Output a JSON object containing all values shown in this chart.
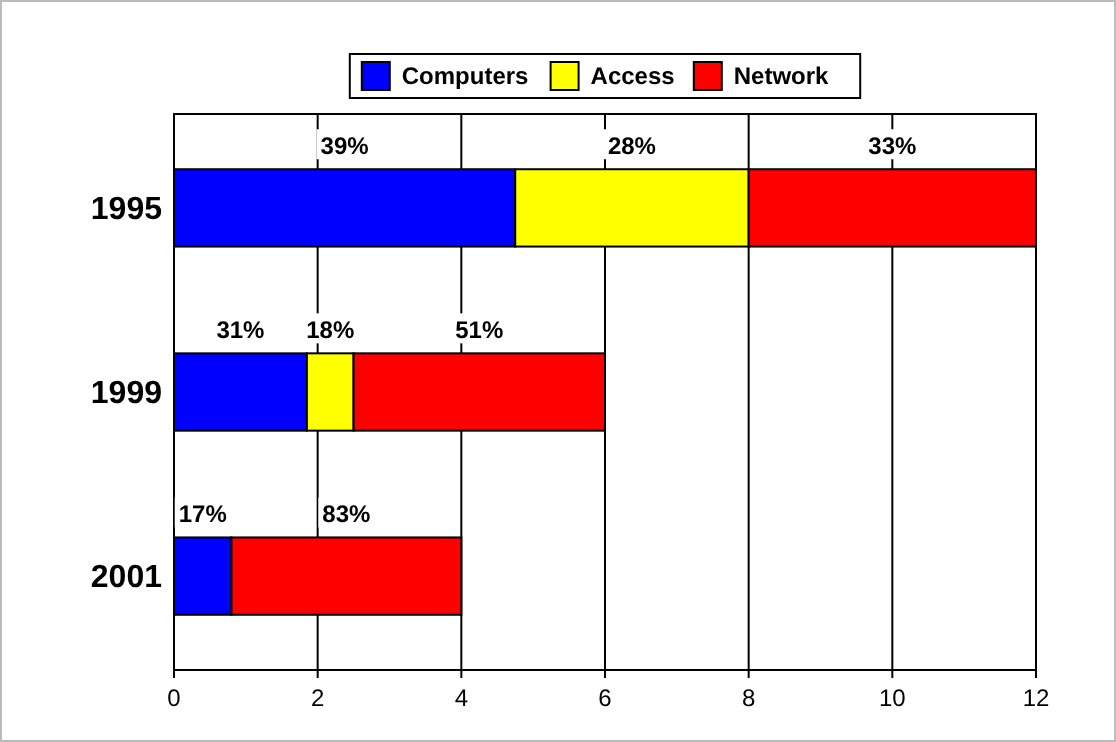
{
  "chart_data": {
    "type": "bar",
    "orientation": "horizontal",
    "stacked": true,
    "categories": [
      "1995",
      "1999",
      "2001"
    ],
    "series": [
      {
        "name": "Computers",
        "color": "#0000ff",
        "values": [
          4.75,
          1.85,
          0.8
        ]
      },
      {
        "name": "Access",
        "color": "#ffff00",
        "values": [
          3.25,
          0.65,
          null
        ]
      },
      {
        "name": "Network",
        "color": "#ff0000",
        "values": [
          4,
          3.5,
          3.2
        ]
      }
    ],
    "annotations": [
      "39%",
      "28%",
      "33%",
      "31%",
      "18%",
      "51%",
      "17%",
      "83%"
    ],
    "xlim": [
      0,
      12
    ],
    "xticks": [
      0,
      2,
      4,
      6,
      8,
      10,
      12
    ],
    "grid": "x",
    "legend": "top"
  }
}
